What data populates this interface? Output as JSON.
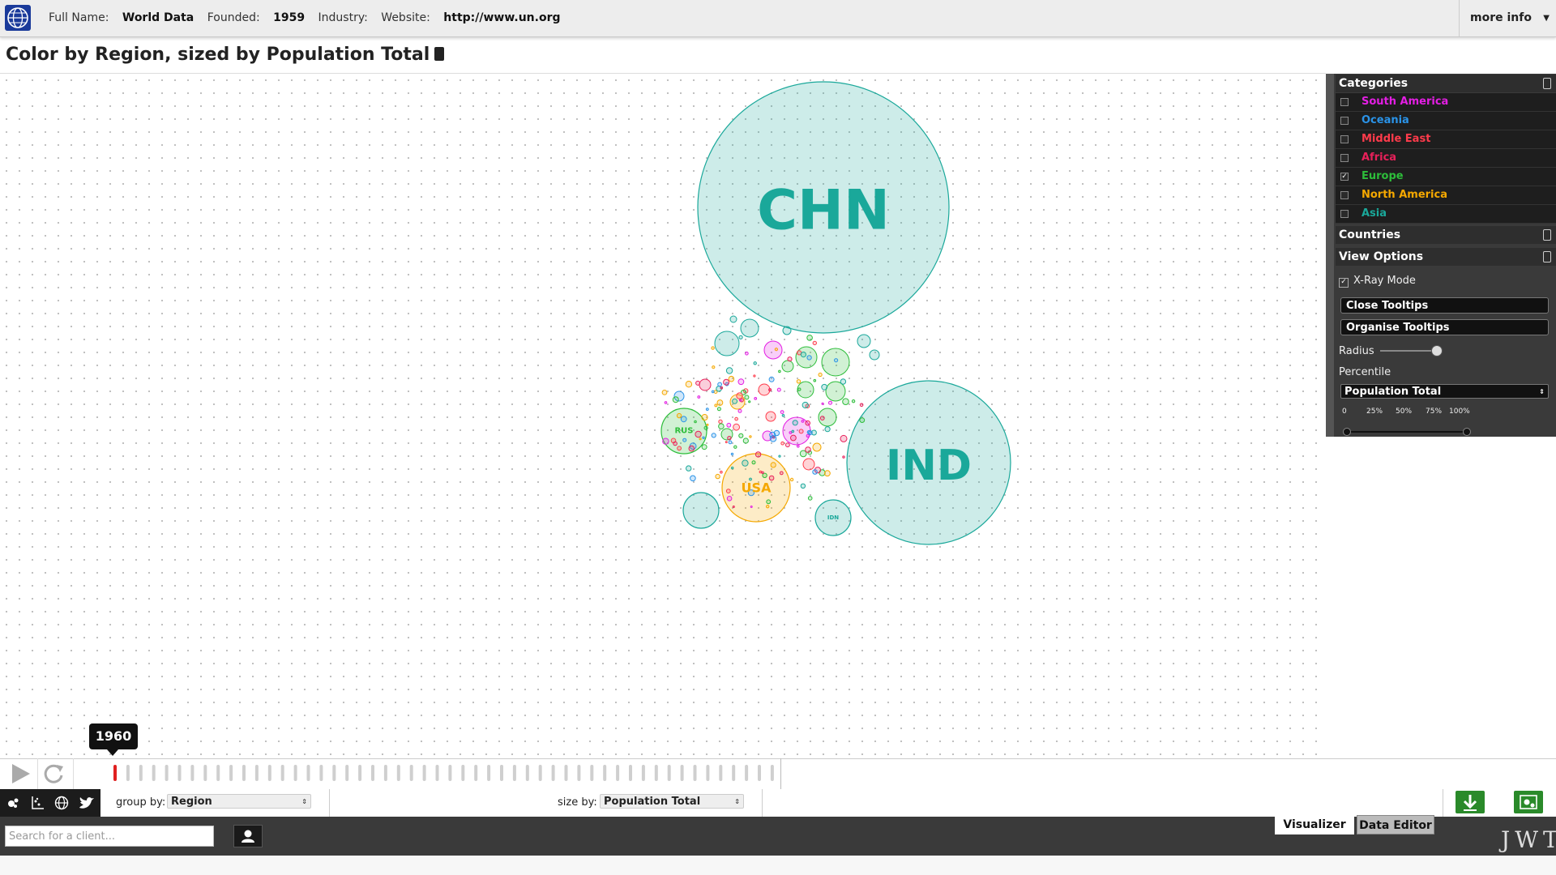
{
  "topbar": {
    "full_name_label": "Full Name:",
    "full_name": "World Data",
    "founded_label": "Founded:",
    "founded": "1959",
    "industry_label": "Industry:",
    "website_label": "Website:",
    "website": "http://www.un.org",
    "more_info": "more info"
  },
  "page_title": "Color by Region, sized by Population Total",
  "colors": {
    "south_america": "#e31ee3",
    "oceania": "#2a93e8",
    "middle_east": "#ff3b4b",
    "africa": "#e8205a",
    "europe": "#2dbd3a",
    "north_america": "#f5a800",
    "asia": "#1aa89a"
  },
  "panel": {
    "categories_header": "Categories",
    "categories": [
      {
        "label": "South America",
        "color": "#e31ee3",
        "checked": false
      },
      {
        "label": "Oceania",
        "color": "#2a93e8",
        "checked": false
      },
      {
        "label": "Middle East",
        "color": "#ff3b4b",
        "checked": false
      },
      {
        "label": "Africa",
        "color": "#e8205a",
        "checked": false
      },
      {
        "label": "Europe",
        "color": "#2dbd3a",
        "checked": true
      },
      {
        "label": "North America",
        "color": "#f5a800",
        "checked": false
      },
      {
        "label": "Asia",
        "color": "#1aa89a",
        "checked": false
      }
    ],
    "countries_header": "Countries",
    "view_options_header": "View Options",
    "xray_label": "X-Ray Mode",
    "xray_checked": true,
    "close_tooltips": "Close Tooltips",
    "organise_tooltips": "Organise Tooltips",
    "radius_label": "Radius",
    "radius_level": 0.9,
    "percentile_label": "Percentile",
    "percentile_value": "Population Total",
    "percentile_ticks": [
      "0",
      "25%",
      "50%",
      "75%",
      "100%"
    ]
  },
  "chart_data": {
    "type": "bubble",
    "color_by": "Region",
    "size_by": "Population Total",
    "labeled_bubbles": [
      {
        "label": "CHN",
        "region": "Asia"
      },
      {
        "label": "IND",
        "region": "Asia"
      },
      {
        "label": "USA",
        "region": "North America"
      },
      {
        "label": "RUS",
        "region": "Europe"
      },
      {
        "label": "IDN",
        "region": "Asia"
      }
    ]
  },
  "timeline": {
    "year": "1960"
  },
  "toolbar": {
    "group_by_label": "group by:",
    "group_by_value": "Region",
    "size_by_label": "size by:",
    "size_by_value": "Population Total"
  },
  "bottom": {
    "search_placeholder": "Search for a client...",
    "tab_visualizer": "Visualizer",
    "tab_data_editor": "Data Editor",
    "brand": "JWT"
  },
  "icons": {
    "logo": "globe-logo-icon",
    "play": "play-icon",
    "refresh": "refresh-icon",
    "bubbles": "bubbles-icon",
    "scatter": "scatter-plot-icon",
    "globe": "globe-icon",
    "twitter": "twitter-icon",
    "user": "user-icon",
    "download": "download-icon",
    "settings": "settings-icon"
  }
}
